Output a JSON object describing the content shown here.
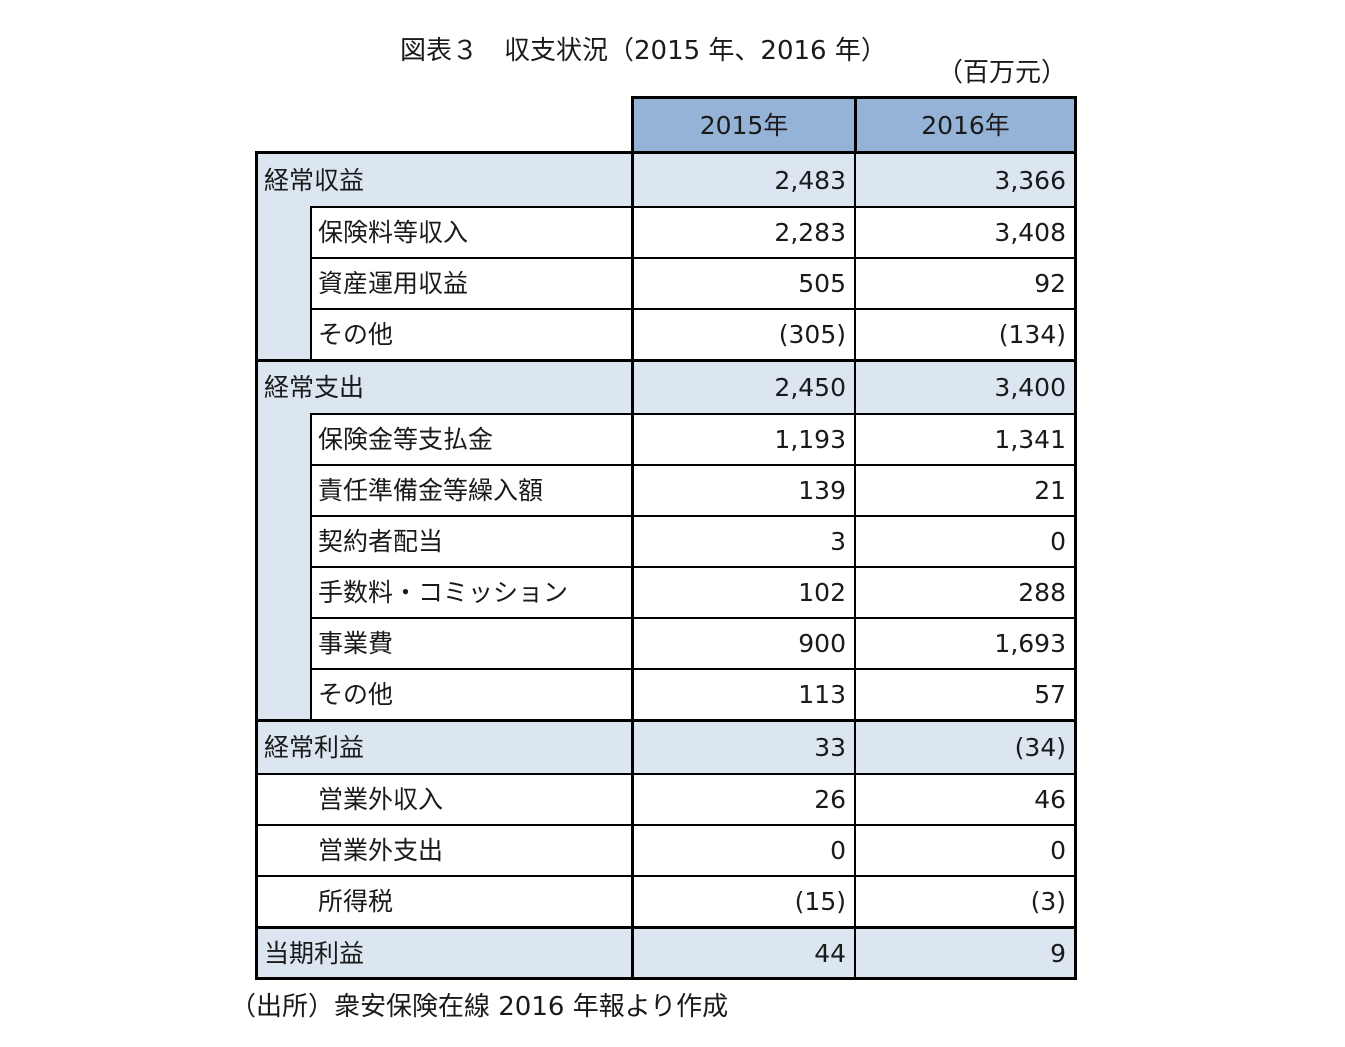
{
  "title": "図表３　収支状況（2015 年、2016 年）",
  "unit": "（百万元）",
  "source": "（出所）衆安保険在線 2016 年報より作成",
  "table": {
    "columns": [
      "2015年",
      "2016年"
    ],
    "rows": [
      {
        "label": "経常収益",
        "v2015": "2,483",
        "v2016": "3,366",
        "level": 0
      },
      {
        "label": "保険料等収入",
        "v2015": "2,283",
        "v2016": "3,408",
        "level": 1
      },
      {
        "label": "資産運用収益",
        "v2015": "505",
        "v2016": "92",
        "level": 1
      },
      {
        "label": "その他",
        "v2015": "(305)",
        "v2016": "(134)",
        "level": 1
      },
      {
        "label": "経常支出",
        "v2015": "2,450",
        "v2016": "3,400",
        "level": 0
      },
      {
        "label": "保険金等支払金",
        "v2015": "1,193",
        "v2016": "1,341",
        "level": 1
      },
      {
        "label": "責任準備金等繰入額",
        "v2015": "139",
        "v2016": "21",
        "level": 1
      },
      {
        "label": "契約者配当",
        "v2015": "3",
        "v2016": "0",
        "level": 1
      },
      {
        "label": "手数料・コミッション",
        "v2015": "102",
        "v2016": "288",
        "level": 1
      },
      {
        "label": "事業費",
        "v2015": "900",
        "v2016": "1,693",
        "level": 1
      },
      {
        "label": "その他",
        "v2015": "113",
        "v2016": "57",
        "level": 1
      },
      {
        "label": "経常利益",
        "v2015": "33",
        "v2016": "(34)",
        "level": 0
      },
      {
        "label": "営業外収入",
        "v2015": "26",
        "v2016": "46",
        "level": 2
      },
      {
        "label": "営業外支出",
        "v2015": "0",
        "v2016": "0",
        "level": 2
      },
      {
        "label": "所得税",
        "v2015": "(15)",
        "v2016": "(3)",
        "level": 2
      },
      {
        "label": "当期利益",
        "v2015": "44",
        "v2016": "9",
        "level": 0
      }
    ]
  },
  "colors": {
    "header_fill": "#95b3d7",
    "section_fill": "#dce6f1",
    "border": "#000000"
  }
}
